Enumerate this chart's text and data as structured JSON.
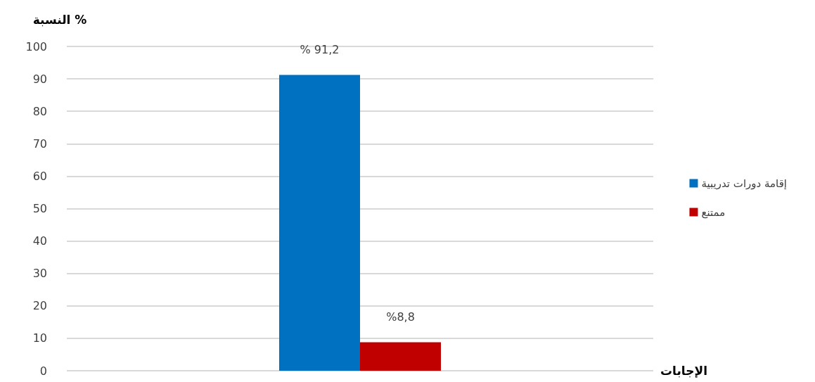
{
  "chart_data": {
    "type": "bar",
    "categories": [
      null
    ],
    "xlabel": "الإجابات",
    "ylabel": "النسبة %",
    "series": [
      {
        "name": "إقامة دورات تدريبية",
        "color": "#0070c0",
        "values": [
          91.2
        ],
        "value_labels": [
          "% 91,2"
        ]
      },
      {
        "name": "ممتنع",
        "color": "#c00000",
        "values": [
          8.8
        ],
        "value_labels": [
          "%8,8"
        ]
      }
    ],
    "ylim": [
      0,
      100
    ],
    "yticks": [
      0,
      10,
      20,
      30,
      40,
      50,
      60,
      70,
      80,
      90,
      100
    ],
    "grid": "y",
    "legend": "right"
  }
}
